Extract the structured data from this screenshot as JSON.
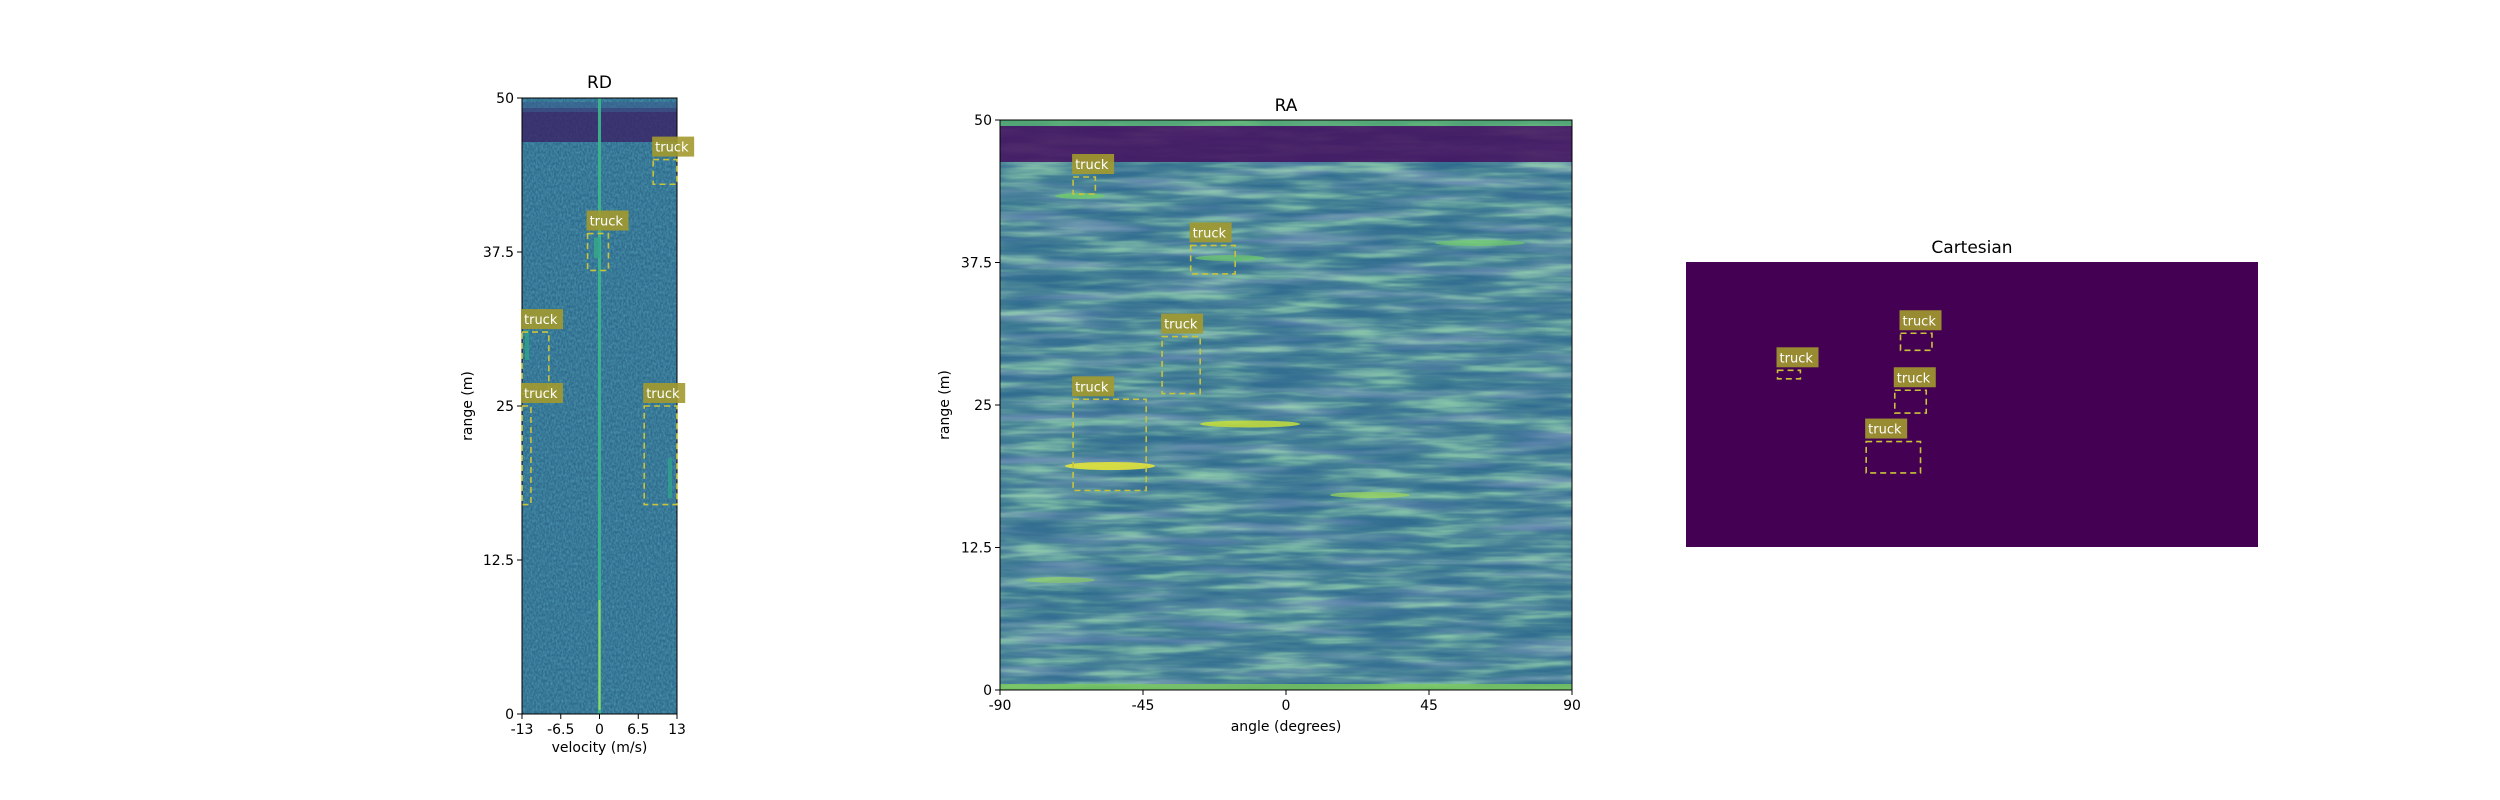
{
  "chart_data": [
    {
      "type": "heatmap",
      "title": "RD",
      "xlabel": "velocity (m/s)",
      "ylabel": "range (m)",
      "xlim": [
        -13,
        13
      ],
      "ylim": [
        0,
        50
      ],
      "xticks": [
        "-13",
        "-6.5",
        "0",
        "6.5",
        "13"
      ],
      "yticks": [
        "0",
        "12.5",
        "25",
        "37.5",
        "50"
      ],
      "boxes": [
        {
          "label": "truck",
          "x0": 9,
          "x1": 13,
          "y0": 43,
          "y1": 45
        },
        {
          "label": "truck",
          "x0": -2,
          "x1": 1.5,
          "y0": 36,
          "y1": 39
        },
        {
          "label": "truck",
          "x0": -13,
          "x1": -8.5,
          "y0": 26,
          "y1": 31
        },
        {
          "label": "truck",
          "x0": 7.5,
          "x1": 13,
          "y0": 17,
          "y1": 25
        },
        {
          "label": "truck",
          "x0": -13,
          "x1": -11.5,
          "y0": 17,
          "y1": 25
        }
      ]
    },
    {
      "type": "heatmap",
      "title": "RA",
      "xlabel": "angle (degrees)",
      "ylabel": "range (m)",
      "xlim": [
        -90,
        90
      ],
      "ylim": [
        0,
        50
      ],
      "xticks": [
        "-90",
        "-45",
        "0",
        "45",
        "90"
      ],
      "yticks": [
        "0",
        "12.5",
        "25",
        "37.5",
        "50"
      ],
      "boxes": [
        {
          "label": "truck",
          "x0": -67,
          "x1": -60,
          "y0": 43.5,
          "y1": 45
        },
        {
          "label": "truck",
          "x0": -30,
          "x1": -16,
          "y0": 36.5,
          "y1": 39
        },
        {
          "label": "truck",
          "x0": -39,
          "x1": -27,
          "y0": 26,
          "y1": 31
        },
        {
          "label": "truck",
          "x0": -67,
          "x1": -44,
          "y0": 17.5,
          "y1": 25.5
        }
      ]
    },
    {
      "type": "heatmap",
      "title": "Cartesian",
      "xlim": [
        0,
        100
      ],
      "ylim": [
        0,
        50
      ],
      "boxes": [
        {
          "label": "truck",
          "x0": 37.5,
          "x1": 43,
          "y0": 34.5,
          "y1": 37.5
        },
        {
          "label": "truck",
          "x0": 16,
          "x1": 20,
          "y0": 29.5,
          "y1": 31
        },
        {
          "label": "truck",
          "x0": 36.5,
          "x1": 42,
          "y0": 23.5,
          "y1": 27.5
        },
        {
          "label": "truck",
          "x0": 31.5,
          "x1": 41,
          "y0": 13,
          "y1": 18.5
        }
      ]
    }
  ],
  "colors": {
    "background_field": "#2c6f8e",
    "cartesian_fill": "#440154",
    "box_stroke": "#c9c33a",
    "label_bg": "#a39a2e"
  }
}
